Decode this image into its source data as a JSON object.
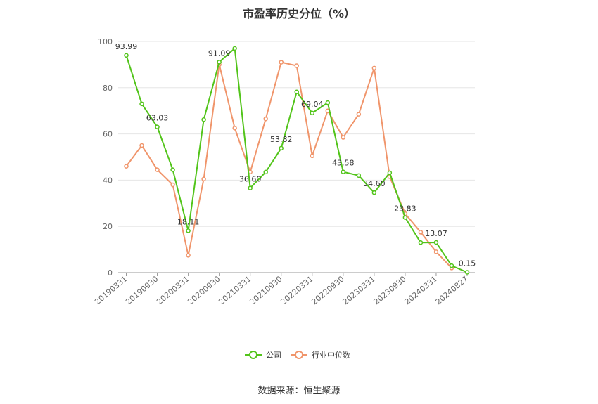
{
  "title": "市盈率历史分位（%）",
  "source": "数据来源：恒生聚源",
  "chart_data": {
    "type": "line",
    "title": "市盈率历史分位（%）",
    "xlabel": "",
    "ylabel": "",
    "ylim": [
      0,
      100
    ],
    "yticks": [
      0,
      20,
      40,
      60,
      80,
      100
    ],
    "grid": true,
    "legend_position": "bottom",
    "x": [
      "20190331",
      "20190630",
      "20190930",
      "20191231",
      "20200331",
      "20200630",
      "20200930",
      "20201231",
      "20210331",
      "20210630",
      "20210930",
      "20211231",
      "20220331",
      "20220630",
      "20220930",
      "20221231",
      "20230331",
      "20230630",
      "20230930",
      "20231231",
      "20240331",
      "20240630",
      "20240827"
    ],
    "xtick_labels": [
      "20190331",
      "20190930",
      "20200331",
      "20200930",
      "20210331",
      "20210930",
      "20220331",
      "20220930",
      "20230331",
      "20230930",
      "20240331",
      "20240827"
    ],
    "series": [
      {
        "name": "公司",
        "color": "#52c41a",
        "values": [
          93.99,
          73.0,
          63.03,
          44.5,
          18.11,
          66.2,
          91.09,
          97.0,
          36.6,
          43.5,
          53.82,
          78.2,
          69.04,
          73.5,
          43.58,
          42.0,
          34.6,
          43.2,
          23.83,
          13.0,
          13.07,
          3.0,
          0.15
        ],
        "data_labels": [
          {
            "index": 0,
            "text": "93.99"
          },
          {
            "index": 2,
            "text": "63.03"
          },
          {
            "index": 4,
            "text": "18.11"
          },
          {
            "index": 6,
            "text": "91.09"
          },
          {
            "index": 8,
            "text": "36.60"
          },
          {
            "index": 10,
            "text": "53.82"
          },
          {
            "index": 12,
            "text": "69.04"
          },
          {
            "index": 14,
            "text": "43.58"
          },
          {
            "index": 16,
            "text": "34.60"
          },
          {
            "index": 18,
            "text": "23.83"
          },
          {
            "index": 20,
            "text": "13.07"
          },
          {
            "index": 22,
            "text": "0.15"
          }
        ]
      },
      {
        "name": "行业中位数",
        "color": "#f0956b",
        "values": [
          46.0,
          55.0,
          44.5,
          38.0,
          7.5,
          40.5,
          90.0,
          62.5,
          43.5,
          66.5,
          91.0,
          89.5,
          50.5,
          70.0,
          58.5,
          68.5,
          88.5,
          41.5,
          25.5,
          17.5,
          9.0,
          2.0,
          null
        ]
      }
    ]
  }
}
